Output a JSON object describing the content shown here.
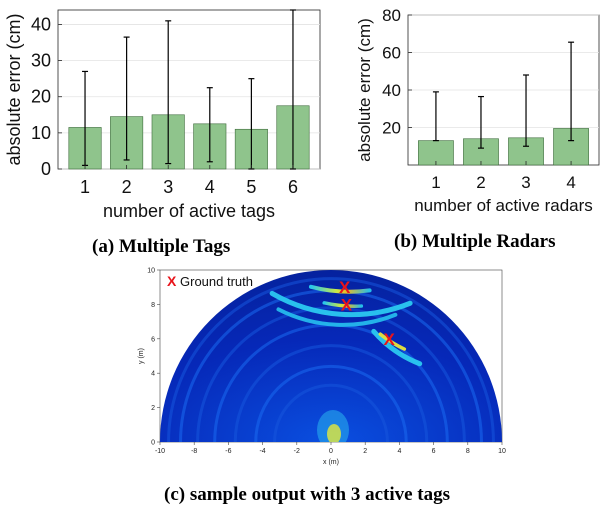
{
  "chart_data": [
    {
      "type": "bar",
      "ylabel": "absolute error (cm)",
      "xlabel": "number of active tags",
      "categories": [
        "1",
        "2",
        "3",
        "4",
        "5",
        "6"
      ],
      "values": [
        11.5,
        14.5,
        15.0,
        12.5,
        11.0,
        17.5
      ],
      "error_low": [
        1.0,
        2.5,
        1.5,
        2.0,
        0.0,
        0.0
      ],
      "error_high": [
        27.0,
        36.5,
        41.0,
        22.5,
        25.0,
        44.0
      ],
      "ylim": [
        0,
        44
      ],
      "yticks": [
        "0",
        "10",
        "20",
        "30",
        "40"
      ],
      "bar_color": "#8fc48c",
      "grid": true
    },
    {
      "type": "bar",
      "ylabel": "absolute error (cm)",
      "xlabel": "number of active radars",
      "categories": [
        "1",
        "2",
        "3",
        "4"
      ],
      "values": [
        13.0,
        14.0,
        14.5,
        19.5
      ],
      "error_low": [
        13.0,
        9.0,
        10.0,
        13.0
      ],
      "error_high": [
        39.0,
        36.5,
        48.0,
        65.5
      ],
      "ylim": [
        0,
        80
      ],
      "yticks": [
        "20",
        "40",
        "60",
        "80"
      ],
      "bar_color": "#8fc48c",
      "grid": true
    },
    {
      "type": "heatmap",
      "xlabel": "x (m)",
      "ylabel": "y (m)",
      "xlim": [
        -10,
        10
      ],
      "ylim": [
        0,
        10
      ],
      "xticks": [
        "-10",
        "-8",
        "-6",
        "-4",
        "-2",
        "0",
        "2",
        "4",
        "6",
        "8",
        "10"
      ],
      "yticks": [
        "0",
        "2",
        "4",
        "6",
        "8",
        "10"
      ],
      "legend": "Ground truth",
      "ground_truth": [
        [
          0.8,
          9.0
        ],
        [
          0.9,
          8.0
        ],
        [
          3.4,
          6.0
        ]
      ],
      "marker_color": "#e8141b",
      "colormap": "jet",
      "legend_position": "top-left"
    }
  ],
  "captions": {
    "a": "(a) Multiple Tags",
    "b": "(b) Multiple Radars",
    "c": "(c) sample output with 3 active tags"
  }
}
